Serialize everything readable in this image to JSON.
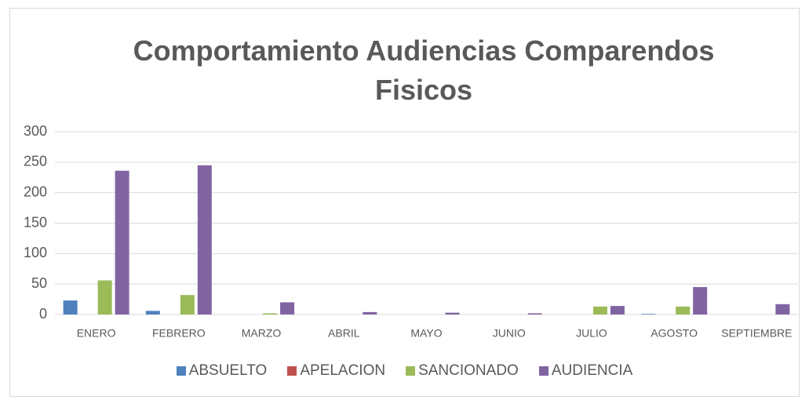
{
  "chart_data": {
    "type": "bar",
    "title": "Comportamiento Audiencias Comparendos Fisicos",
    "categories": [
      "ENERO",
      "FEBRERO",
      "MARZO",
      "ABRIL",
      "MAYO",
      "JUNIO",
      "JULIO",
      "AGOSTO",
      "SEPTIEMBRE"
    ],
    "series": [
      {
        "name": "ABSUELTO",
        "color": "#4f81bd",
        "values": [
          23,
          6,
          0,
          0,
          0,
          0,
          0,
          1,
          0
        ]
      },
      {
        "name": "APELACION",
        "color": "#c0504d",
        "values": [
          0,
          0,
          0,
          0,
          0,
          0,
          0,
          0,
          0
        ]
      },
      {
        "name": "SANCIONADO",
        "color": "#9bbb59",
        "values": [
          56,
          32,
          2,
          0,
          0,
          0,
          13,
          13,
          0
        ]
      },
      {
        "name": "AUDIENCIA",
        "color": "#8064a2",
        "values": [
          236,
          245,
          20,
          4,
          3,
          2,
          14,
          45,
          17
        ]
      }
    ],
    "ylim": [
      0,
      300
    ],
    "yticks": [
      0,
      50,
      100,
      150,
      200,
      250,
      300
    ],
    "grid": true,
    "legend": "bottom"
  }
}
